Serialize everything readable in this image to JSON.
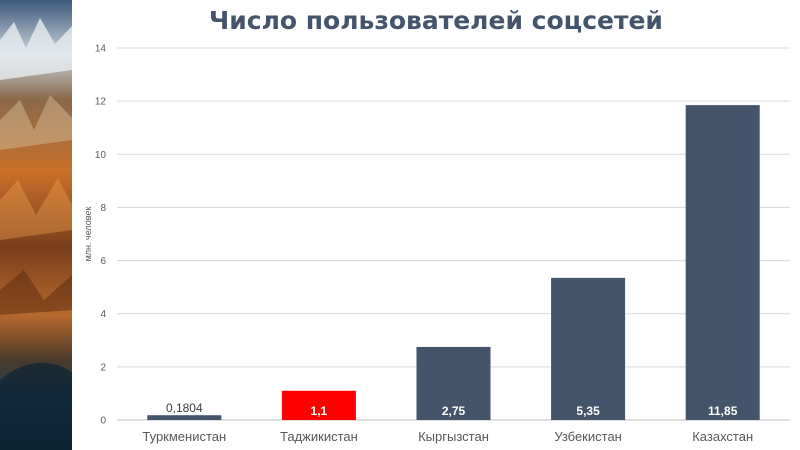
{
  "chart_data": {
    "type": "bar",
    "title": "Число пользователей соцсетей",
    "xlabel": "",
    "ylabel": "млн. человек",
    "ylim": [
      0,
      14
    ],
    "yticks": [
      0,
      2,
      4,
      6,
      8,
      10,
      12,
      14
    ],
    "grid": true,
    "legend": "none",
    "categories": [
      "Туркменистан",
      "Таджикистан",
      "Кыргызстан",
      "Узбекистан",
      "Казахстан"
    ],
    "values": [
      0.1804,
      1.1,
      2.75,
      5.35,
      11.85
    ],
    "data_labels": [
      "0,1804",
      "1,1",
      "2,75",
      "5,35",
      "11,85"
    ],
    "colors": {
      "bar": "#44546a",
      "highlight": "#ff0000",
      "highlight_category": "Таджикистан",
      "grid": "#d9d9d9",
      "axis_text": "#595959",
      "title": "#44546a"
    }
  }
}
